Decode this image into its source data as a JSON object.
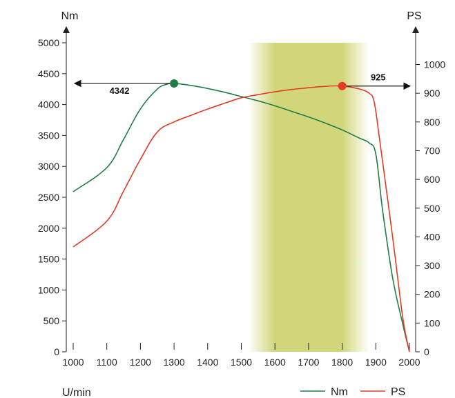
{
  "chart_data": {
    "type": "line",
    "xlabel": "U/min",
    "y_left_label": "Nm",
    "y_right_label": "PS",
    "x_ticks": [
      1000,
      1100,
      1200,
      1300,
      1400,
      1500,
      1600,
      1700,
      1800,
      1900,
      2000
    ],
    "y_left_ticks": [
      0,
      500,
      1000,
      1500,
      2000,
      2500,
      3000,
      3500,
      4000,
      4500,
      5000
    ],
    "y_right_ticks": [
      0,
      100,
      200,
      300,
      400,
      500,
      600,
      700,
      800,
      900,
      1000
    ],
    "xlim": [
      1000,
      2000
    ],
    "y_left_lim": [
      0,
      5000
    ],
    "y_right_lim": [
      0,
      1000
    ],
    "highlight_band": {
      "from": 1600,
      "to": 1800,
      "fade_from": 1520,
      "fade_to": 1880,
      "color": "#d2d67a"
    },
    "series": [
      {
        "name": "Nm",
        "axis": "left",
        "color": "#1e7d45",
        "x": [
          1000,
          1100,
          1150,
          1200,
          1250,
          1280,
          1300,
          1350,
          1400,
          1450,
          1500,
          1550,
          1600,
          1650,
          1700,
          1750,
          1800,
          1850,
          1880,
          1900,
          1920,
          1950,
          1980,
          2000
        ],
        "y": [
          2590,
          2980,
          3440,
          3930,
          4250,
          4330,
          4342,
          4310,
          4260,
          4200,
          4130,
          4060,
          3980,
          3890,
          3800,
          3700,
          3590,
          3460,
          3380,
          3200,
          2300,
          1200,
          450,
          0
        ]
      },
      {
        "name": "PS",
        "axis": "right",
        "color": "#e23b24",
        "x": [
          1000,
          1100,
          1150,
          1200,
          1250,
          1300,
          1350,
          1400,
          1450,
          1500,
          1550,
          1600,
          1650,
          1700,
          1750,
          1800,
          1850,
          1880,
          1895,
          1910,
          1950,
          1980,
          2000
        ],
        "y": [
          365,
          455,
          560,
          670,
          765,
          800,
          823,
          845,
          865,
          884,
          895,
          905,
          913,
          919,
          924,
          925,
          915,
          900,
          870,
          750,
          400,
          120,
          0
        ]
      }
    ],
    "annotations": [
      {
        "label": "4342",
        "series": "Nm",
        "x": 1300,
        "y": 4342,
        "arrow": "left"
      },
      {
        "label": "925",
        "series": "PS",
        "x": 1800,
        "y": 925,
        "arrow": "right"
      }
    ],
    "legend": {
      "position": "bottom-right",
      "entries": [
        "Nm",
        "PS"
      ]
    },
    "grid": false
  }
}
